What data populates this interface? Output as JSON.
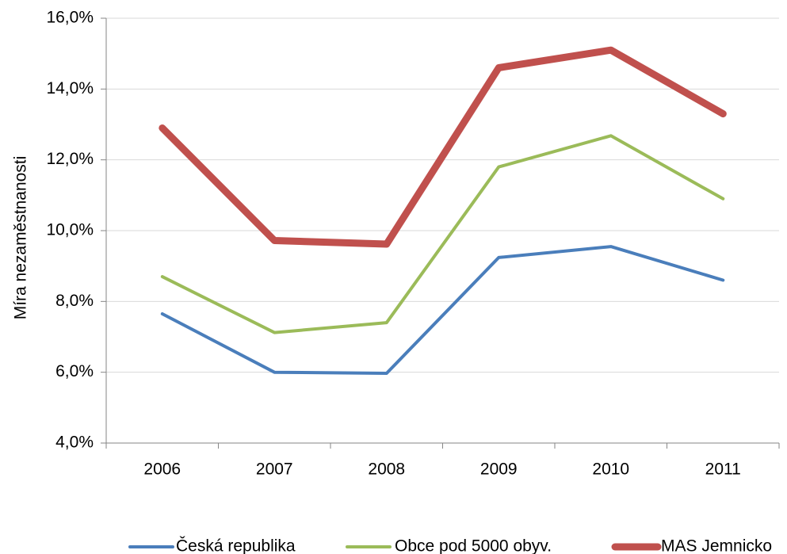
{
  "chart_data": {
    "type": "line",
    "categories": [
      "2006",
      "2007",
      "2008",
      "2009",
      "2010",
      "2011"
    ],
    "ylabel": "Míra nezaměstnanosti",
    "ylim": [
      4.0,
      16.0
    ],
    "yticks": [
      4.0,
      6.0,
      8.0,
      10.0,
      12.0,
      14.0,
      16.0
    ],
    "ytick_labels": [
      "4,0%",
      "6,0%",
      "8,0%",
      "10,0%",
      "12,0%",
      "14,0%",
      "16,0%"
    ],
    "grid": true,
    "legend_position": "bottom",
    "series": [
      {
        "name": "Česká republika",
        "color": "#4a7ebb",
        "values": [
          7.65,
          6.0,
          5.97,
          9.24,
          9.55,
          8.6
        ]
      },
      {
        "name": "Obce pod 5000 obyv.",
        "color": "#9bbb59",
        "values": [
          8.7,
          7.12,
          7.4,
          11.8,
          12.68,
          10.9
        ]
      },
      {
        "name": "MAS Jemnicko",
        "color": "#c0504d",
        "values": [
          12.9,
          9.72,
          9.62,
          14.6,
          15.1,
          13.3
        ]
      }
    ]
  }
}
